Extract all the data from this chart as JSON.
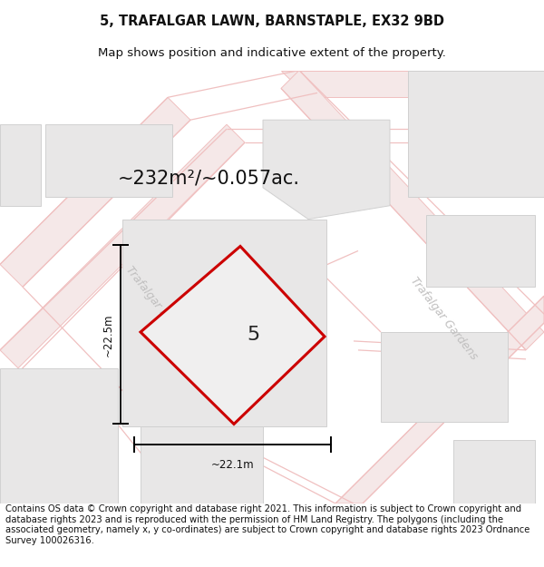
{
  "title": "5, TRAFALGAR LAWN, BARNSTAPLE, EX32 9BD",
  "subtitle": "Map shows position and indicative extent of the property.",
  "area_text": "~232m²/~0.057ac.",
  "dim_width": "~22.1m",
  "dim_height": "~22.5m",
  "property_number": "5",
  "footer": "Contains OS data © Crown copyright and database right 2021. This information is subject to Crown copyright and database rights 2023 and is reproduced with the permission of HM Land Registry. The polygons (including the associated geometry, namely x, y co-ordinates) are subject to Crown copyright and database rights 2023 Ordnance Survey 100026316.",
  "bg_color": "#ffffff",
  "map_bg_color": "#f5f4f4",
  "bldg_fill": "#e8e7e7",
  "bldg_edge": "#d0d0d0",
  "property_fill": "#f0efef",
  "property_border": "#cc0000",
  "road_line_color": "#f0c0c0",
  "road_fill_color": "#f5e8e8",
  "watermark_color": "#c0bfbf",
  "title_fontsize": 10.5,
  "subtitle_fontsize": 9.5,
  "area_fontsize": 15,
  "footer_fontsize": 7.2,
  "dim_fontsize": 8.5,
  "prop_num_fontsize": 16,
  "road_label_fontsize": 9
}
